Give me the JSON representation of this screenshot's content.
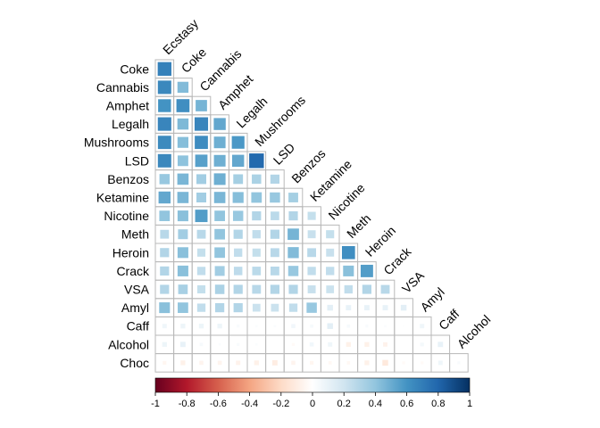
{
  "chart_data": {
    "type": "heatmap",
    "layout": "lower-triangle correlation matrix, square glyph size proportional to |r|",
    "variables": [
      "Ecstasy",
      "Coke",
      "Cannabis",
      "Amphet",
      "Legalh",
      "Mushrooms",
      "LSD",
      "Benzos",
      "Ketamine",
      "Nicotine",
      "Meth",
      "Heroin",
      "Crack",
      "VSA",
      "Amyl",
      "Caff",
      "Alcohol",
      "Choc"
    ],
    "row_labels": [
      "Coke",
      "Cannabis",
      "Amphet",
      "Legalh",
      "Mushrooms",
      "LSD",
      "Benzos",
      "Ketamine",
      "Nicotine",
      "Meth",
      "Heroin",
      "Crack",
      "VSA",
      "Amyl",
      "Caff",
      "Alcohol",
      "Choc"
    ],
    "col_labels": [
      "Ecstasy",
      "Coke",
      "Cannabis",
      "Amphet",
      "Legalh",
      "Mushrooms",
      "LSD",
      "Benzos",
      "Ketamine",
      "Nicotine",
      "Meth",
      "Heroin",
      "Crack",
      "VSA",
      "Amyl",
      "Caff",
      "Alcohol"
    ],
    "values": [
      [
        0.68
      ],
      [
        0.65,
        0.44
      ],
      [
        0.6,
        0.62,
        0.47
      ],
      [
        0.66,
        0.45,
        0.66,
        0.52
      ],
      [
        0.64,
        0.43,
        0.63,
        0.49,
        0.58
      ],
      [
        0.65,
        0.41,
        0.55,
        0.49,
        0.52,
        0.78
      ],
      [
        0.38,
        0.46,
        0.35,
        0.49,
        0.34,
        0.32,
        0.3
      ],
      [
        0.52,
        0.46,
        0.35,
        0.46,
        0.43,
        0.4,
        0.38,
        0.34
      ],
      [
        0.4,
        0.42,
        0.56,
        0.4,
        0.38,
        0.3,
        0.27,
        0.3,
        0.24
      ],
      [
        0.28,
        0.35,
        0.28,
        0.4,
        0.3,
        0.25,
        0.3,
        0.47,
        0.23,
        0.24
      ],
      [
        0.3,
        0.42,
        0.24,
        0.4,
        0.25,
        0.24,
        0.28,
        0.44,
        0.28,
        0.23,
        0.62
      ],
      [
        0.3,
        0.42,
        0.25,
        0.35,
        0.26,
        0.27,
        0.28,
        0.38,
        0.25,
        0.25,
        0.42,
        0.56
      ],
      [
        0.3,
        0.33,
        0.24,
        0.32,
        0.3,
        0.28,
        0.3,
        0.3,
        0.23,
        0.22,
        0.25,
        0.3,
        0.28
      ],
      [
        0.42,
        0.4,
        0.25,
        0.3,
        0.3,
        0.22,
        0.22,
        0.25,
        0.38,
        0.12,
        0.1,
        0.1,
        0.1,
        0.12
      ],
      [
        0.07,
        0.08,
        0.08,
        0.08,
        0.03,
        0.02,
        0.02,
        0.06,
        0.04,
        0.12,
        0.04,
        0.03,
        0.02,
        0.01,
        0.07
      ],
      [
        0.08,
        0.1,
        0.04,
        0.02,
        0.03,
        0.02,
        0.0,
        -0.03,
        0.06,
        0.07,
        -0.08,
        -0.08,
        -0.07,
        0.0,
        0.05,
        0.1
      ],
      [
        -0.05,
        -0.08,
        -0.06,
        -0.06,
        -0.07,
        -0.08,
        -0.1,
        -0.06,
        -0.05,
        -0.04,
        -0.04,
        -0.08,
        -0.12,
        -0.03,
        -0.03,
        0.07,
        0.03
      ]
    ],
    "colorbar": {
      "range": [
        -1,
        1
      ],
      "ticks": [
        "-1",
        "-0.8",
        "-0.6",
        "-0.4",
        "-0.2",
        "0",
        "0.2",
        "0.4",
        "0.6",
        "0.8",
        "1"
      ],
      "colors": [
        "#67001f",
        "#b2182b",
        "#d6604d",
        "#f4a582",
        "#fddbc7",
        "#ffffff",
        "#d1e5f0",
        "#92c5de",
        "#4393c3",
        "#2166ac",
        "#053061"
      ]
    },
    "grid": true,
    "title": "",
    "xlabel": "",
    "ylabel": ""
  }
}
